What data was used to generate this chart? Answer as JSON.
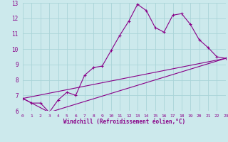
{
  "title": "",
  "xlabel": "Windchill (Refroidissement éolien,°C)",
  "ylabel": "",
  "background_color": "#cce9ec",
  "line_color": "#880088",
  "grid_color": "#aad4d8",
  "xlim": [
    0,
    23
  ],
  "ylim": [
    6,
    13
  ],
  "xticks": [
    0,
    1,
    2,
    3,
    4,
    5,
    6,
    7,
    8,
    9,
    10,
    11,
    12,
    13,
    14,
    15,
    16,
    17,
    18,
    19,
    20,
    21,
    22,
    23
  ],
  "yticks": [
    6,
    7,
    8,
    9,
    10,
    11,
    12,
    13
  ],
  "line1_x": [
    0,
    1,
    2,
    3,
    4,
    5,
    6,
    7,
    8,
    9,
    10,
    11,
    12,
    13,
    14,
    15,
    16,
    17,
    18,
    19,
    20,
    21,
    22,
    23
  ],
  "line1_y": [
    6.8,
    6.5,
    6.5,
    5.9,
    6.7,
    7.2,
    7.0,
    8.3,
    8.8,
    8.9,
    9.9,
    10.9,
    11.8,
    12.9,
    12.5,
    11.4,
    11.1,
    12.2,
    12.3,
    11.6,
    10.6,
    10.1,
    9.5,
    9.4
  ],
  "line2_x": [
    0,
    23
  ],
  "line2_y": [
    6.8,
    9.4
  ],
  "line3_x": [
    0,
    3,
    23
  ],
  "line3_y": [
    6.8,
    5.9,
    9.4
  ]
}
